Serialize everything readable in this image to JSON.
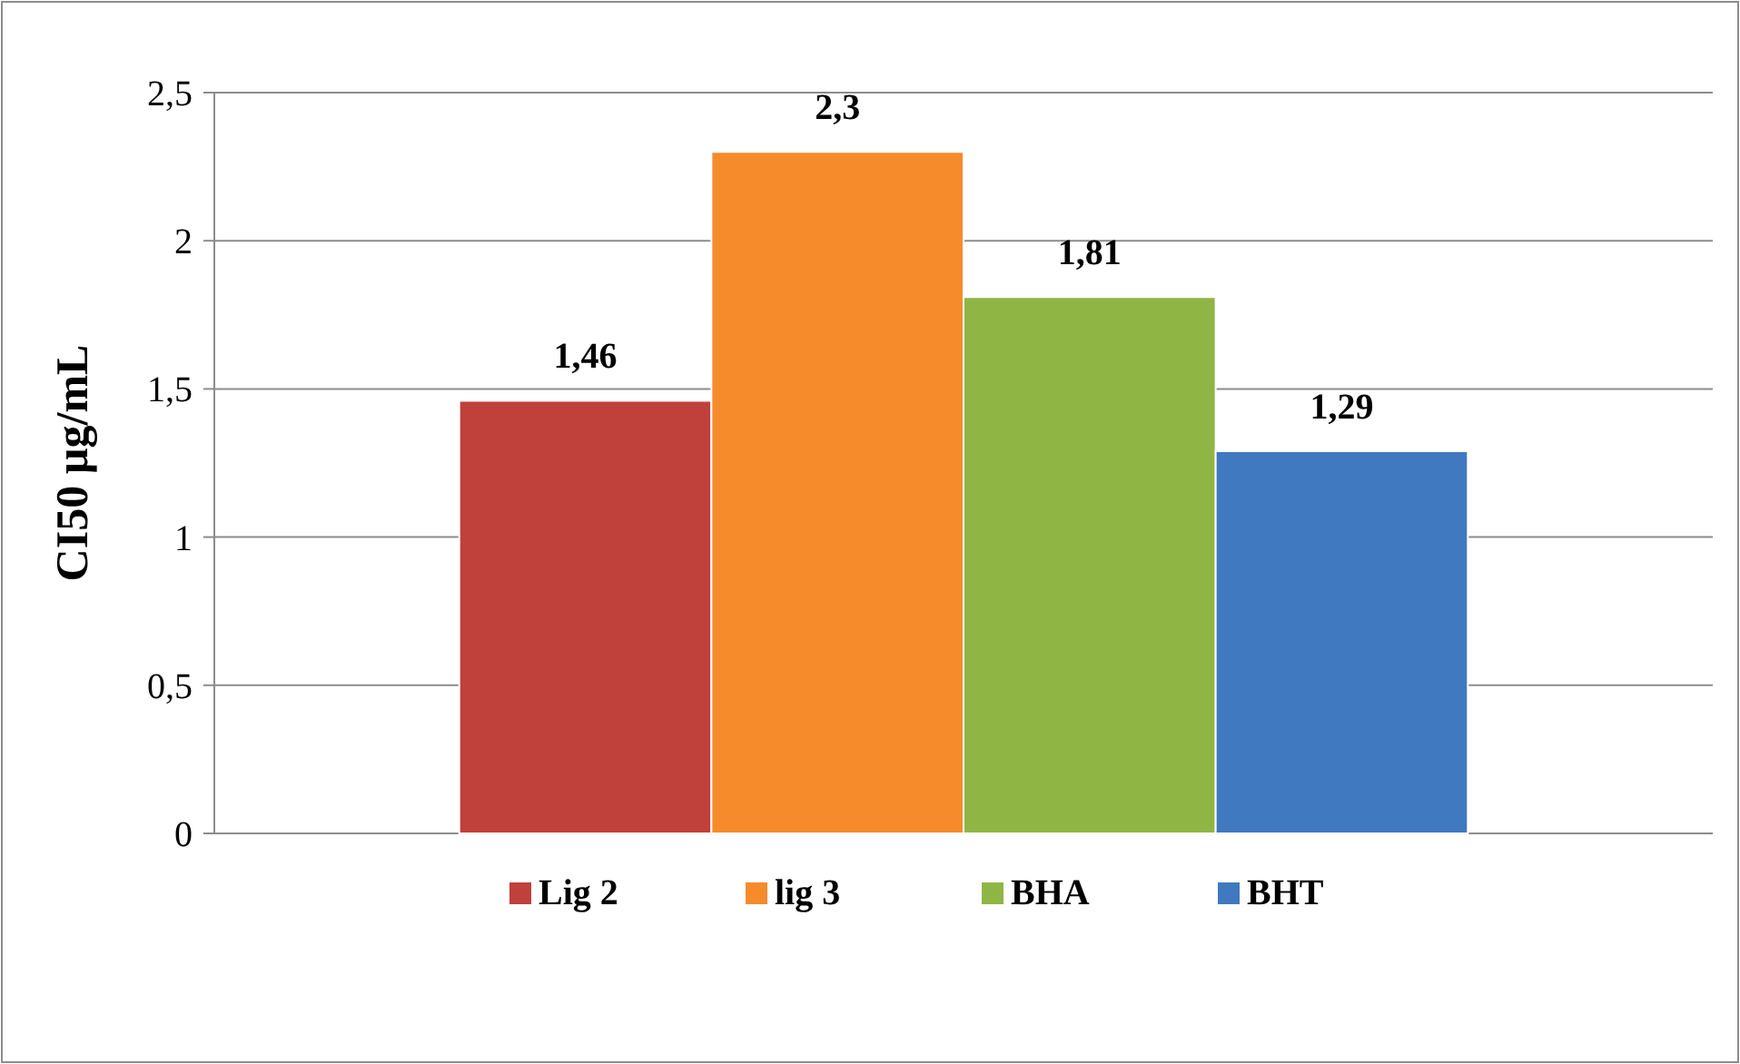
{
  "chart_data": {
    "type": "bar",
    "ylabel": "CI50 µg/mL",
    "categories": [
      null
    ],
    "series": [
      {
        "name": "Lig 2",
        "color": "#c0403c",
        "values": [
          1.46
        ],
        "value_labels": [
          "1,46"
        ]
      },
      {
        "name": "lig 3",
        "color": "#f68b2c",
        "values": [
          2.3
        ],
        "value_labels": [
          "2,3"
        ]
      },
      {
        "name": "BHA",
        "color": "#8fb545",
        "values": [
          1.81
        ],
        "value_labels": [
          "1,81"
        ]
      },
      {
        "name": "BHT",
        "color": "#4079bf",
        "values": [
          1.29
        ],
        "value_labels": [
          "1,29"
        ]
      }
    ],
    "ylim": [
      0,
      2.5
    ],
    "yticks": [
      0,
      {
        "value": 0.5,
        "label": "0,5"
      },
      1,
      {
        "value": 1.5,
        "label": "1,5"
      },
      2,
      {
        "value": 2.5,
        "label": "2,5"
      }
    ],
    "grid": "y",
    "legend": "bottom"
  }
}
